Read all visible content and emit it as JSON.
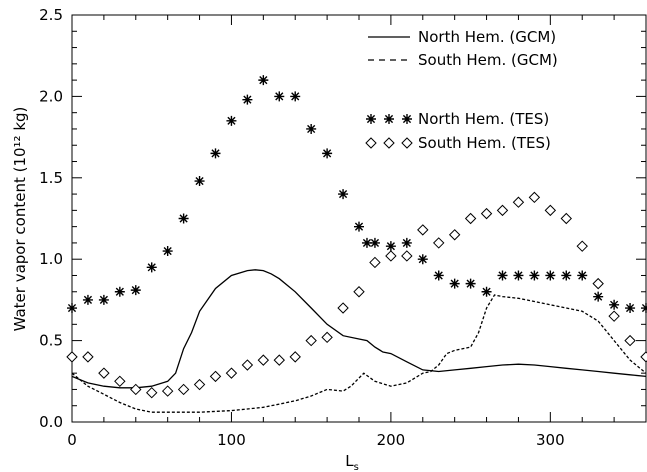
{
  "chart_data": {
    "type": "line",
    "xlabel": "L",
    "xlabel_sub": "s",
    "ylabel": "Water vapor content (10¹² kg)",
    "xlim": [
      0,
      360
    ],
    "ylim": [
      0,
      2.5
    ],
    "x_ticks": [
      0,
      100,
      200,
      300
    ],
    "x_tick_labels": [
      "0",
      "100",
      "200",
      "300"
    ],
    "y_ticks": [
      0,
      0.5,
      1,
      1.5,
      2,
      2.5
    ],
    "y_tick_labels": [
      "0.0",
      "0.5",
      "1.0",
      "1.5",
      "2.0",
      "2.5"
    ],
    "legend_placement": "top-right",
    "series": [
      {
        "name": "North Hem. (GCM)",
        "style": "solid",
        "x": [
          0,
          10,
          20,
          30,
          40,
          50,
          60,
          65,
          70,
          75,
          80,
          90,
          100,
          110,
          115,
          120,
          125,
          130,
          140,
          150,
          160,
          170,
          180,
          185,
          190,
          195,
          200,
          210,
          220,
          230,
          240,
          250,
          260,
          270,
          280,
          290,
          300,
          310,
          320,
          330,
          340,
          350,
          360
        ],
        "y": [
          0.28,
          0.24,
          0.22,
          0.21,
          0.21,
          0.22,
          0.25,
          0.3,
          0.45,
          0.55,
          0.68,
          0.82,
          0.9,
          0.93,
          0.935,
          0.93,
          0.91,
          0.88,
          0.8,
          0.7,
          0.6,
          0.53,
          0.51,
          0.5,
          0.46,
          0.43,
          0.42,
          0.37,
          0.32,
          0.31,
          0.32,
          0.33,
          0.34,
          0.35,
          0.355,
          0.35,
          0.34,
          0.33,
          0.32,
          0.31,
          0.3,
          0.29,
          0.28
        ]
      },
      {
        "name": "South Hem. (GCM)",
        "style": "dashed",
        "x": [
          0,
          10,
          20,
          30,
          40,
          50,
          60,
          70,
          80,
          90,
          100,
          110,
          120,
          130,
          140,
          150,
          160,
          170,
          175,
          180,
          183,
          190,
          200,
          210,
          220,
          225,
          230,
          235,
          240,
          245,
          250,
          255,
          260,
          265,
          270,
          280,
          290,
          300,
          310,
          320,
          330,
          340,
          350,
          360
        ],
        "y": [
          0.3,
          0.22,
          0.17,
          0.12,
          0.08,
          0.06,
          0.06,
          0.06,
          0.06,
          0.065,
          0.07,
          0.08,
          0.09,
          0.11,
          0.13,
          0.16,
          0.2,
          0.19,
          0.22,
          0.27,
          0.3,
          0.25,
          0.22,
          0.24,
          0.3,
          0.31,
          0.35,
          0.42,
          0.44,
          0.45,
          0.46,
          0.55,
          0.7,
          0.78,
          0.77,
          0.76,
          0.74,
          0.72,
          0.7,
          0.68,
          0.62,
          0.5,
          0.38,
          0.3
        ]
      },
      {
        "name": "North Hem. (TES)",
        "style": "asterisk",
        "x": [
          0,
          10,
          20,
          30,
          40,
          50,
          60,
          70,
          80,
          90,
          100,
          110,
          120,
          130,
          140,
          150,
          160,
          170,
          180,
          185,
          190,
          200,
          210,
          220,
          230,
          240,
          250,
          260,
          270,
          280,
          290,
          300,
          310,
          320,
          330,
          340,
          350,
          360
        ],
        "y": [
          0.7,
          0.75,
          0.75,
          0.8,
          0.81,
          0.95,
          1.05,
          1.25,
          1.48,
          1.65,
          1.85,
          1.98,
          2.1,
          2.0,
          2.0,
          1.8,
          1.65,
          1.4,
          1.2,
          1.1,
          1.1,
          1.08,
          1.1,
          1.0,
          0.9,
          0.85,
          0.85,
          0.8,
          0.9,
          0.9,
          0.9,
          0.9,
          0.9,
          0.9,
          0.77,
          0.72,
          0.7,
          0.7
        ]
      },
      {
        "name": "South Hem. (TES)",
        "style": "diamond",
        "x": [
          0,
          10,
          20,
          30,
          40,
          50,
          60,
          70,
          80,
          90,
          100,
          110,
          120,
          130,
          140,
          150,
          160,
          170,
          180,
          190,
          200,
          210,
          220,
          230,
          240,
          250,
          260,
          270,
          280,
          290,
          300,
          310,
          320,
          330,
          340,
          350,
          360
        ],
        "y": [
          0.4,
          0.4,
          0.3,
          0.25,
          0.2,
          0.18,
          0.19,
          0.2,
          0.23,
          0.28,
          0.3,
          0.35,
          0.38,
          0.38,
          0.4,
          0.5,
          0.52,
          0.7,
          0.8,
          0.98,
          1.02,
          1.02,
          1.18,
          1.1,
          1.15,
          1.25,
          1.28,
          1.3,
          1.35,
          1.38,
          1.3,
          1.25,
          1.08,
          0.85,
          0.65,
          0.5,
          0.4
        ]
      }
    ]
  }
}
